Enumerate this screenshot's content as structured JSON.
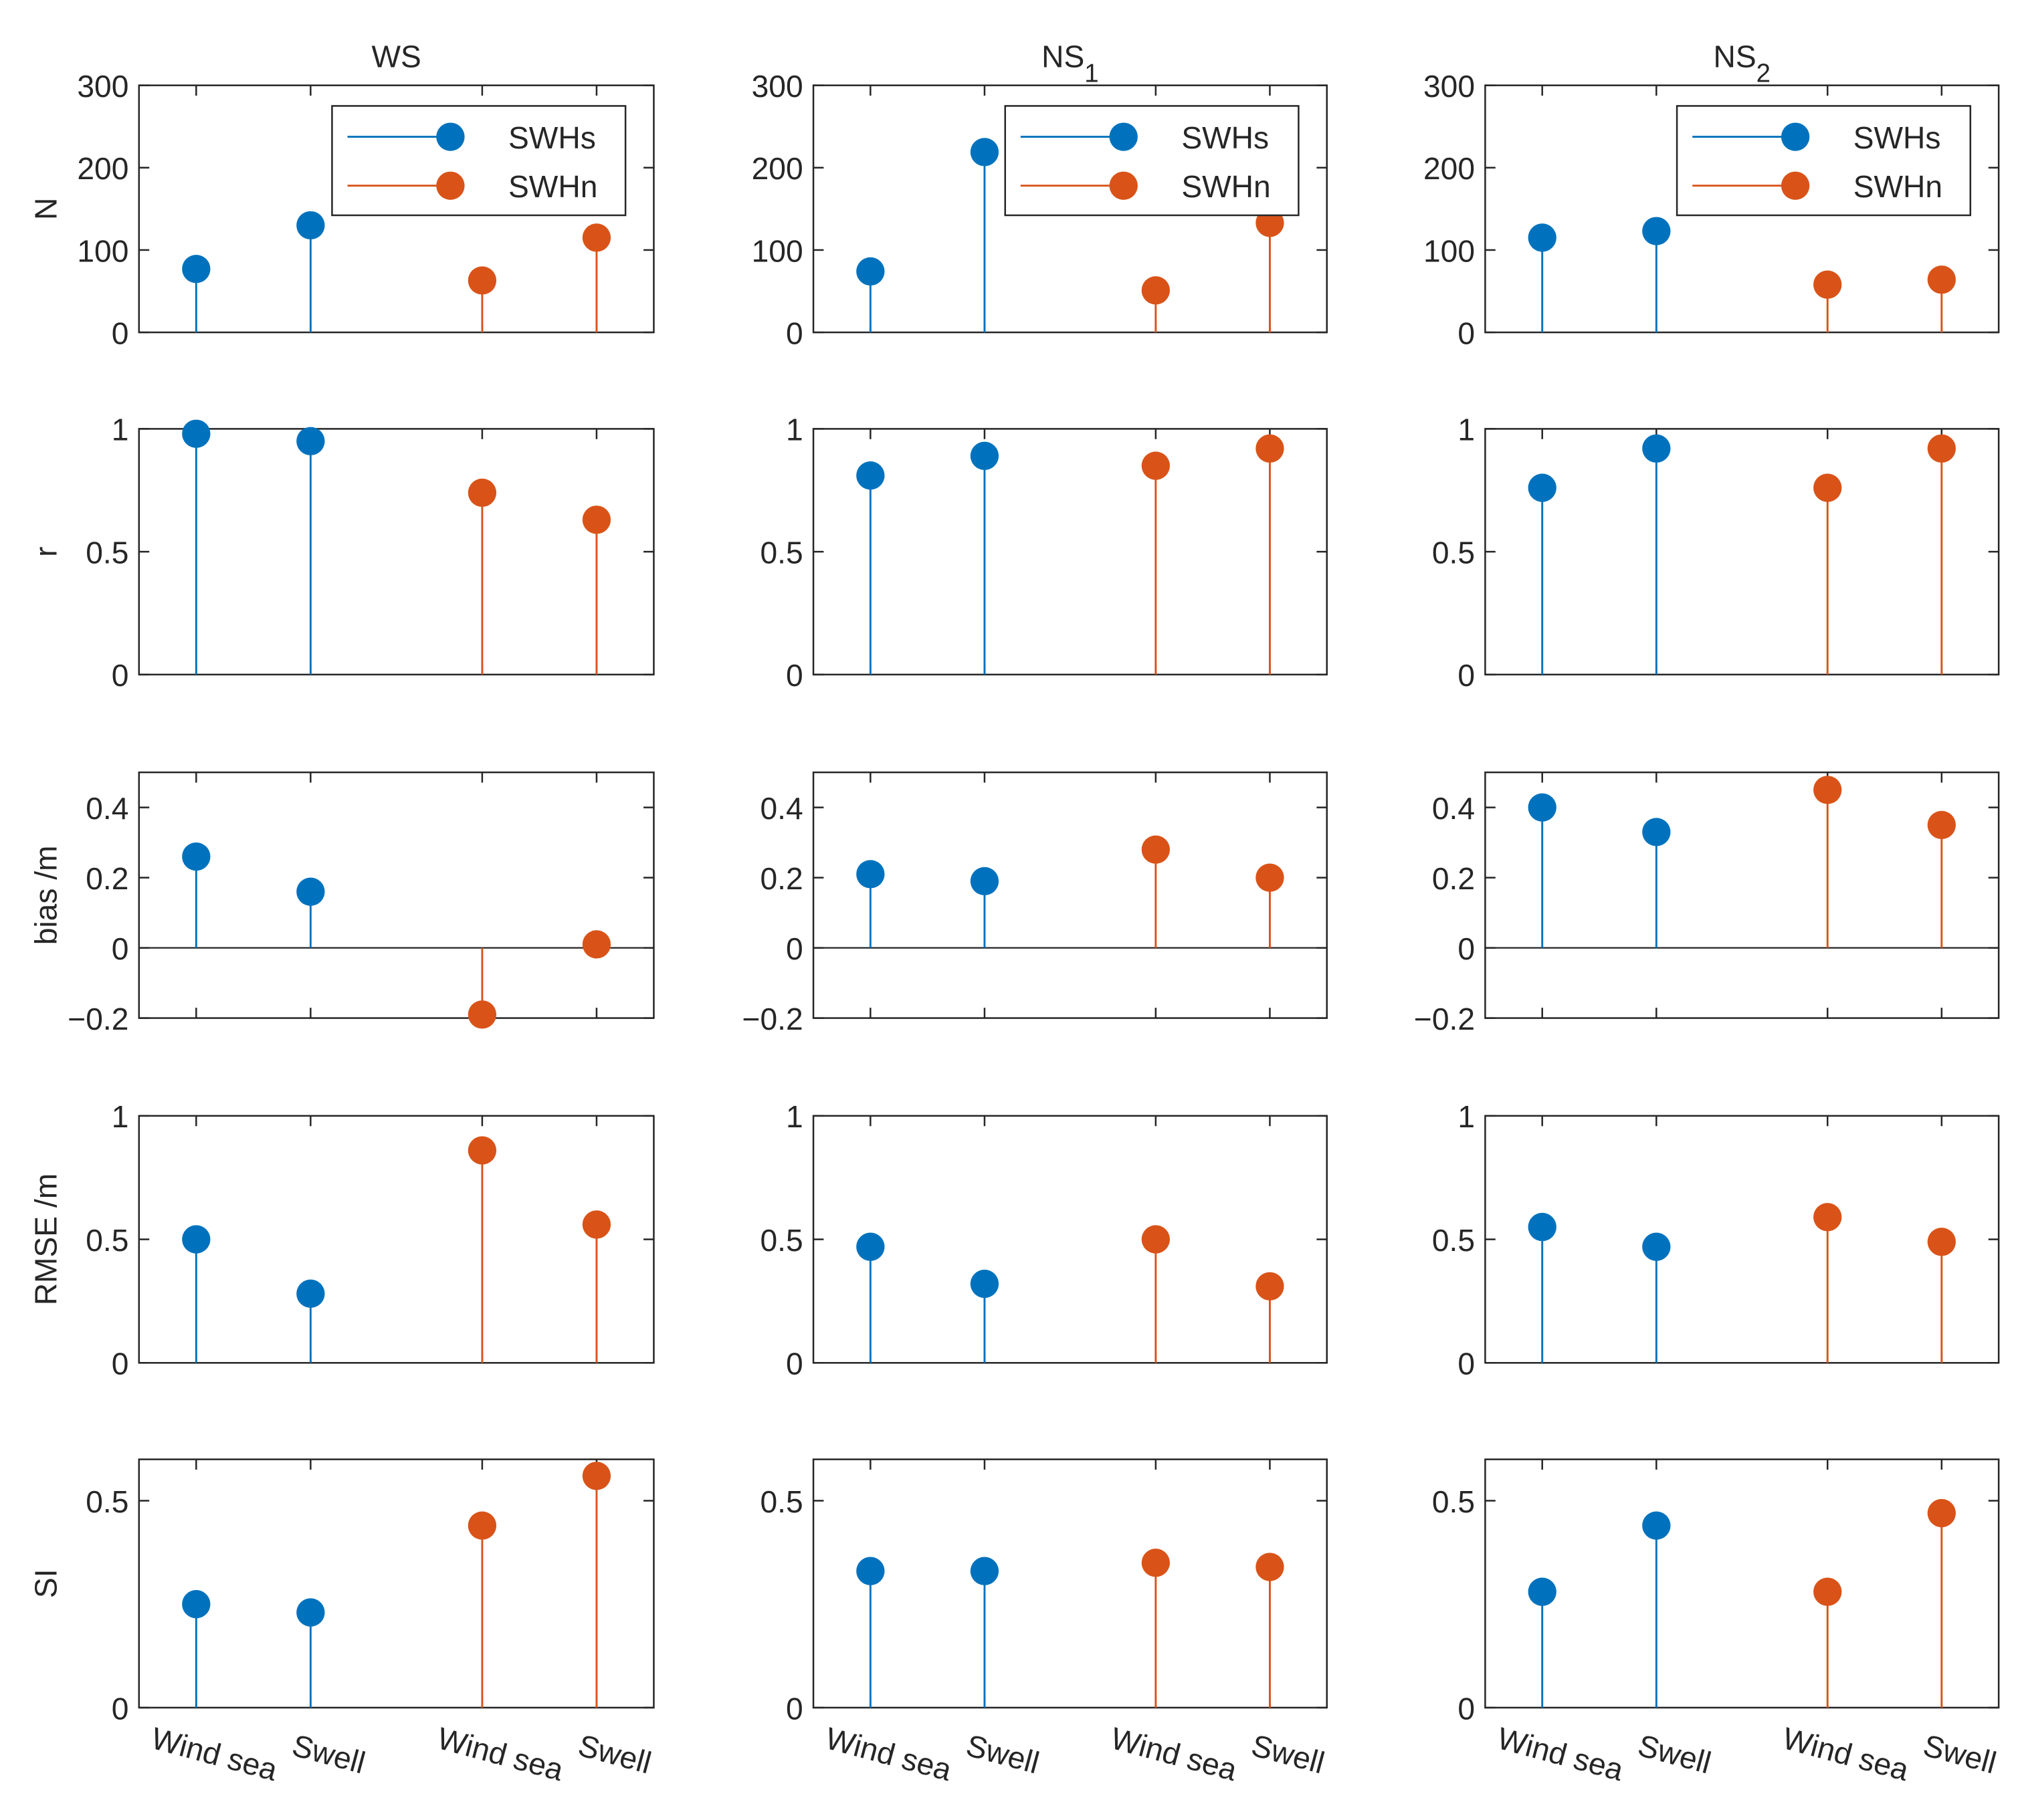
{
  "chart_data": [
    {
      "type": "stem",
      "title": "WS",
      "ylabel": "N",
      "categories": [
        null,
        null,
        null,
        null
      ],
      "legend": "northeast",
      "series": [
        {
          "name": "SWHs",
          "color": "#0072BD",
          "values": [
            77,
            130,
            null,
            null
          ]
        },
        {
          "name": "SWHn",
          "color": "#D95319",
          "values": [
            null,
            null,
            63,
            115
          ]
        }
      ],
      "ylim": [
        0,
        300
      ],
      "yticks": [
        0,
        100,
        200,
        300
      ]
    },
    {
      "type": "stem",
      "title": "NS1",
      "categories": [
        null,
        null,
        null,
        null
      ],
      "legend": "northeast",
      "series": [
        {
          "name": "SWHs",
          "color": "#0072BD",
          "values": [
            74,
            219,
            null,
            null
          ]
        },
        {
          "name": "SWHn",
          "color": "#D95319",
          "values": [
            null,
            null,
            51,
            133
          ]
        }
      ],
      "ylim": [
        0,
        300
      ],
      "yticks": [
        0,
        100,
        200,
        300
      ]
    },
    {
      "type": "stem",
      "title": "NS2",
      "categories": [
        null,
        null,
        null,
        null
      ],
      "legend": "northeast",
      "series": [
        {
          "name": "SWHs",
          "color": "#0072BD",
          "values": [
            115,
            123,
            null,
            null
          ]
        },
        {
          "name": "SWHn",
          "color": "#D95319",
          "values": [
            null,
            null,
            58,
            64
          ]
        }
      ],
      "ylim": [
        0,
        300
      ],
      "yticks": [
        0,
        100,
        200,
        300
      ]
    },
    {
      "type": "stem",
      "ylabel": "r",
      "categories": [
        null,
        null,
        null,
        null
      ],
      "series": [
        {
          "color": "#0072BD",
          "values": [
            0.98,
            0.95,
            null,
            null
          ]
        },
        {
          "color": "#D95319",
          "values": [
            null,
            null,
            0.74,
            0.63
          ]
        }
      ],
      "ylim": [
        0,
        1
      ],
      "yticks": [
        0,
        0.5,
        1
      ]
    },
    {
      "type": "stem",
      "categories": [
        null,
        null,
        null,
        null
      ],
      "series": [
        {
          "color": "#0072BD",
          "values": [
            0.81,
            0.89,
            null,
            null
          ]
        },
        {
          "color": "#D95319",
          "values": [
            null,
            null,
            0.85,
            0.92
          ]
        }
      ],
      "ylim": [
        0,
        1
      ],
      "yticks": [
        0,
        0.5,
        1
      ]
    },
    {
      "type": "stem",
      "categories": [
        null,
        null,
        null,
        null
      ],
      "series": [
        {
          "color": "#0072BD",
          "values": [
            0.76,
            0.92,
            null,
            null
          ]
        },
        {
          "color": "#D95319",
          "values": [
            null,
            null,
            0.76,
            0.92
          ]
        }
      ],
      "ylim": [
        0,
        1
      ],
      "yticks": [
        0,
        0.5,
        1
      ]
    },
    {
      "type": "stem",
      "ylabel": "bias /m",
      "categories": [
        null,
        null,
        null,
        null
      ],
      "series": [
        {
          "color": "#0072BD",
          "values": [
            0.26,
            0.16,
            null,
            null
          ]
        },
        {
          "color": "#D95319",
          "values": [
            null,
            null,
            -0.19,
            0.01
          ]
        }
      ],
      "ylim": [
        -0.2,
        0.5
      ],
      "yticks": [
        {
          "value": -0.2,
          "label": "−0.2"
        },
        0,
        0.2,
        0.4
      ]
    },
    {
      "type": "stem",
      "categories": [
        null,
        null,
        null,
        null
      ],
      "series": [
        {
          "color": "#0072BD",
          "values": [
            0.21,
            0.19,
            null,
            null
          ]
        },
        {
          "color": "#D95319",
          "values": [
            null,
            null,
            0.28,
            0.2
          ]
        }
      ],
      "ylim": [
        -0.2,
        0.5
      ],
      "yticks": [
        {
          "value": -0.2,
          "label": "−0.2"
        },
        0,
        0.2,
        0.4
      ]
    },
    {
      "type": "stem",
      "categories": [
        null,
        null,
        null,
        null
      ],
      "series": [
        {
          "color": "#0072BD",
          "values": [
            0.4,
            0.33,
            null,
            null
          ]
        },
        {
          "color": "#D95319",
          "values": [
            null,
            null,
            0.45,
            0.35
          ]
        }
      ],
      "ylim": [
        -0.2,
        0.5
      ],
      "yticks": [
        {
          "value": -0.2,
          "label": "−0.2"
        },
        0,
        0.2,
        0.4
      ]
    },
    {
      "type": "stem",
      "ylabel": "RMSE /m",
      "categories": [
        null,
        null,
        null,
        null
      ],
      "series": [
        {
          "color": "#0072BD",
          "values": [
            0.5,
            0.28,
            null,
            null
          ]
        },
        {
          "color": "#D95319",
          "values": [
            null,
            null,
            0.86,
            0.56
          ]
        }
      ],
      "ylim": [
        0,
        1
      ],
      "yticks": [
        0,
        0.5,
        1
      ]
    },
    {
      "type": "stem",
      "categories": [
        null,
        null,
        null,
        null
      ],
      "series": [
        {
          "color": "#0072BD",
          "values": [
            0.47,
            0.32,
            null,
            null
          ]
        },
        {
          "color": "#D95319",
          "values": [
            null,
            null,
            0.5,
            0.31
          ]
        }
      ],
      "ylim": [
        0,
        1
      ],
      "yticks": [
        0,
        0.5,
        1
      ]
    },
    {
      "type": "stem",
      "categories": [
        null,
        null,
        null,
        null
      ],
      "series": [
        {
          "color": "#0072BD",
          "values": [
            0.55,
            0.47,
            null,
            null
          ]
        },
        {
          "color": "#D95319",
          "values": [
            null,
            null,
            0.59,
            0.49
          ]
        }
      ],
      "ylim": [
        0,
        1
      ],
      "yticks": [
        0,
        0.5,
        1
      ]
    },
    {
      "type": "stem",
      "ylabel": "SI",
      "categories": [
        "Wind sea",
        "Swell",
        "Wind sea",
        "Swell"
      ],
      "series": [
        {
          "color": "#0072BD",
          "values": [
            0.25,
            0.23,
            null,
            null
          ]
        },
        {
          "color": "#D95319",
          "values": [
            null,
            null,
            0.44,
            0.56
          ]
        }
      ],
      "ylim": [
        0,
        0.6
      ],
      "yticks": [
        0,
        0.5
      ]
    },
    {
      "type": "stem",
      "categories": [
        "Wind sea",
        "Swell",
        "Wind sea",
        "Swell"
      ],
      "series": [
        {
          "color": "#0072BD",
          "values": [
            0.33,
            0.33,
            null,
            null
          ]
        },
        {
          "color": "#D95319",
          "values": [
            null,
            null,
            0.35,
            0.34
          ]
        }
      ],
      "ylim": [
        0,
        0.6
      ],
      "yticks": [
        0,
        0.5
      ]
    },
    {
      "type": "stem",
      "categories": [
        "Wind sea",
        "Swell",
        "Wind sea",
        "Swell"
      ],
      "series": [
        {
          "color": "#0072BD",
          "values": [
            0.28,
            0.44,
            null,
            null
          ]
        },
        {
          "color": "#D95319",
          "values": [
            null,
            null,
            0.28,
            0.47
          ]
        }
      ],
      "ylim": [
        0,
        0.6
      ],
      "yticks": [
        0,
        0.5
      ]
    }
  ]
}
